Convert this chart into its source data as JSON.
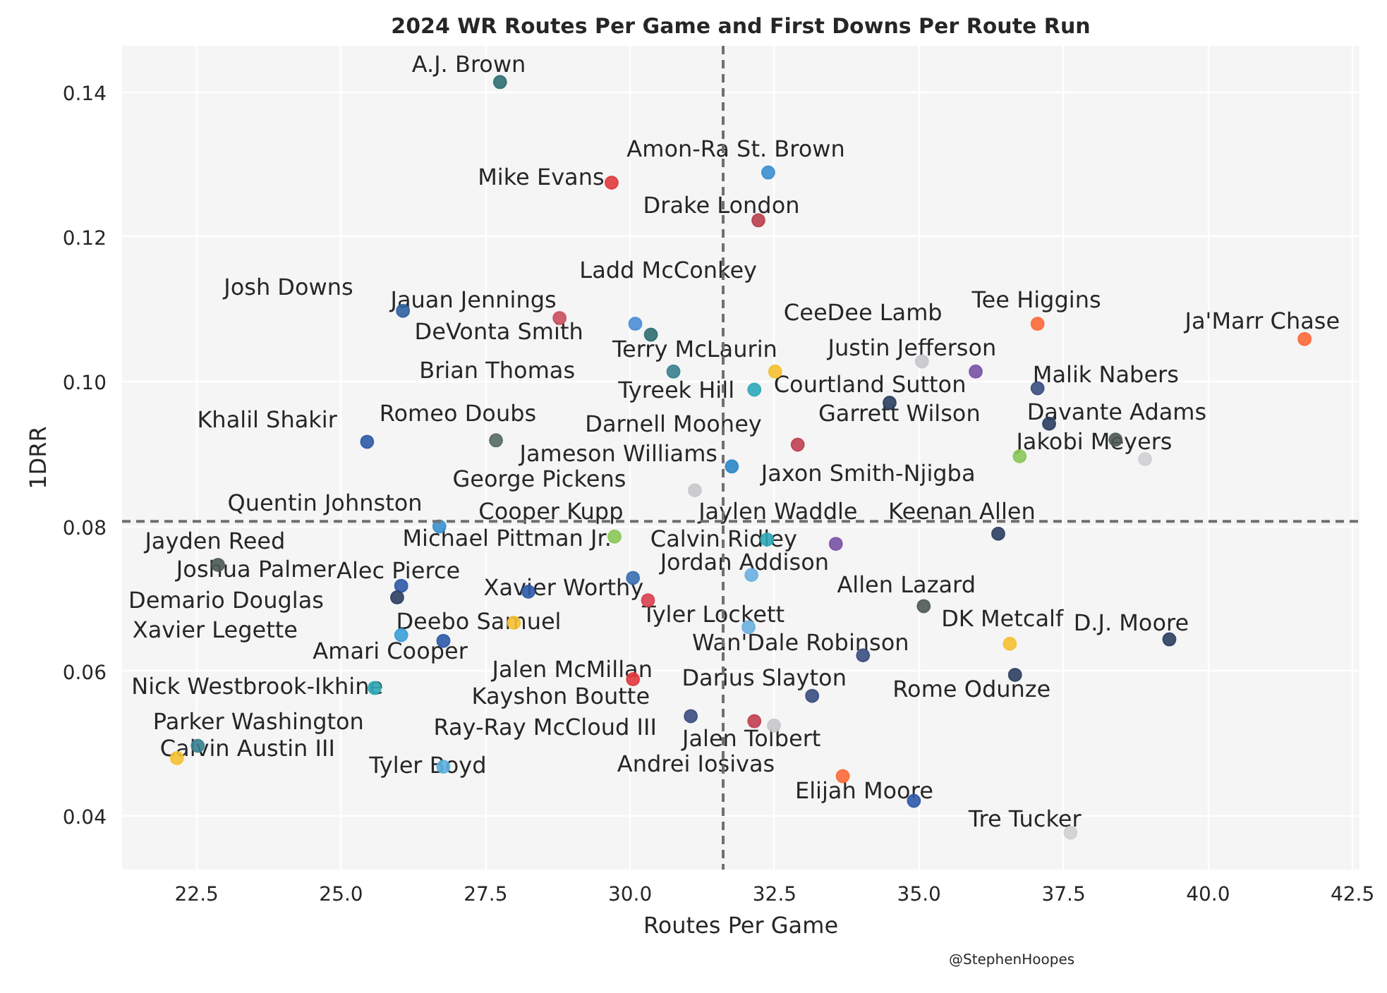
{
  "chart_data": {
    "type": "scatter",
    "title": "2024 WR Routes Per Game and First Downs Per Route Run",
    "xlabel": "Routes Per Game",
    "ylabel": "1DRR",
    "x": [
      27.75,
      32.39,
      29.68,
      32.22,
      26.07,
      28.78,
      30.09,
      30.36,
      30.75,
      32.51,
      32.15,
      35.05,
      35.98,
      37.05,
      41.67,
      37.05,
      34.49,
      37.25,
      38.4,
      38.91,
      36.74,
      32.9,
      31.76,
      31.12,
      25.45,
      27.68,
      26.7,
      29.73,
      32.37,
      33.56,
      36.37,
      22.87,
      26.04,
      25.97,
      28.24,
      30.05,
      30.31,
      32.1,
      32.05,
      27.99,
      26.04,
      26.77,
      35.08,
      36.57,
      39.33,
      34.03,
      36.66,
      30.05,
      31.05,
      33.15,
      32.15,
      32.49,
      25.58,
      22.52,
      22.16,
      26.77,
      33.68,
      34.91,
      37.62
    ],
    "values": [
      0.1414,
      0.1289,
      0.1275,
      0.1223,
      0.1098,
      0.1088,
      0.108,
      0.1065,
      0.1014,
      0.1014,
      0.0989,
      0.1028,
      0.1014,
      0.108,
      0.1059,
      0.0991,
      0.0971,
      0.0942,
      0.092,
      0.0893,
      0.0897,
      0.0913,
      0.0883,
      0.085,
      0.0917,
      0.0919,
      0.08,
      0.0786,
      0.0782,
      0.0776,
      0.079,
      0.0747,
      0.0718,
      0.0702,
      0.071,
      0.0729,
      0.0698,
      0.0733,
      0.0661,
      0.0667,
      0.065,
      0.0642,
      0.069,
      0.0638,
      0.0644,
      0.0622,
      0.0595,
      0.0589,
      0.0538,
      0.0566,
      0.0531,
      0.0525,
      0.0577,
      0.0497,
      0.048,
      0.0468,
      0.0455,
      0.0421,
      0.0377
    ],
    "colors": [
      "#2f6f73",
      "#3a8fd0",
      "#e03a3e",
      "#b8404e",
      "#2f62a0",
      "#c9505f",
      "#4a8fd6",
      "#2f6f6f",
      "#3a8090",
      "#f5c130",
      "#30a8b8",
      "#c8c8cc",
      "#7a52a6",
      "#fc6a3a",
      "#fc6a3a",
      "#3a4e80",
      "#2c3e60",
      "#2c3e60",
      "#4e5a55",
      "#d0d0d4",
      "#8ac858",
      "#c04050",
      "#2e87c8",
      "#c8c8cc",
      "#2e5aa8",
      "#566a60",
      "#3a8fd0",
      "#8ac858",
      "#30a8b8",
      "#7a52a6",
      "#2c3e60",
      "#4e5a55",
      "#2e5aa8",
      "#2c3e60",
      "#2e5aa8",
      "#3a6fb0",
      "#d84050",
      "#6ab0e0",
      "#6ab0e0",
      "#f5c130",
      "#3a9fd8",
      "#2e5aa8",
      "#4e5a55",
      "#f5c130",
      "#2c3e60",
      "#3a4e80",
      "#2c3e60",
      "#e03a3e",
      "#3a4e80",
      "#3a4e80",
      "#c04050",
      "#c8c8cc",
      "#30a8b8",
      "#3a8090",
      "#f5c130",
      "#5ab0e0",
      "#fc6a3a",
      "#2e5aa8",
      "#d0d0d4"
    ],
    "marker": "circle",
    "grid": true,
    "xlim": [
      21.21,
      42.62
    ],
    "ylim": [
      0.0326,
      0.1464
    ],
    "xticks": [
      22.5,
      {
        "value": 25,
        "label": "25.0"
      },
      27.5,
      {
        "value": 30,
        "label": "30.0"
      },
      32.5,
      {
        "value": 35,
        "label": "35.0"
      },
      37.5,
      {
        "value": 40,
        "label": "40.0"
      },
      42.5
    ],
    "yticks": [
      0.04,
      0.06,
      0.08,
      {
        "value": 0.1,
        "label": "0.10"
      },
      0.12,
      0.14
    ],
    "ref_lines": [
      {
        "axis": "x",
        "value": 31.61,
        "color": "#707070",
        "line_style": "dashed"
      },
      {
        "axis": "y",
        "value": 0.0807,
        "color": "#707070",
        "line_style": "dashed"
      }
    ],
    "annotations": [
      "A.J. Brown",
      "Amon-Ra St. Brown",
      "Mike Evans",
      "Drake London",
      "Ladd McConkey",
      "Josh Downs",
      "Jauan Jennings",
      "DeVonta Smith",
      "Terry McLaurin",
      "CeeDee Lamb",
      "Tee Higgins",
      "Ja'Marr Chase",
      "Justin Jefferson",
      "Brian Thomas",
      "Tyreek Hill",
      "Courtland Sutton",
      "Malik Nabers",
      "Garrett Wilson",
      "Davante Adams",
      "Khalil Shakir",
      "Romeo Doubs",
      "Darnell Mooney",
      "Jakobi Meyers",
      "Jameson Williams",
      "Jaxon Smith-Njigba",
      "George Pickens",
      "Quentin Johnston",
      "Cooper Kupp",
      "Jaylen Waddle",
      "Keenan Allen",
      "Michael Pittman Jr.",
      "Calvin Ridley",
      "Jayden Reed",
      "Jordan Addison",
      "Joshua Palmer",
      "Alec Pierce",
      "Xavier Worthy",
      "Allen Lazard",
      "Demario Douglas",
      "Tyler Lockett",
      "Deebo Samuel",
      "DK Metcalf",
      "D.J. Moore",
      "Xavier Legette",
      "Wan'Dale Robinson",
      "Amari Cooper",
      "Jalen McMillan",
      "Darius Slayton",
      "Nick Westbrook-Ikhine",
      "Rome Odunze",
      "Kayshon Boutte",
      "Parker Washington",
      "Ray-Ray McCloud III",
      "Calvin Austin III",
      "Jalen Tolbert",
      "Andrei Iosivas",
      "Tyler Boyd",
      "Elijah Moore",
      "Tre Tucker",
      "@StephenHoopes"
    ]
  }
}
